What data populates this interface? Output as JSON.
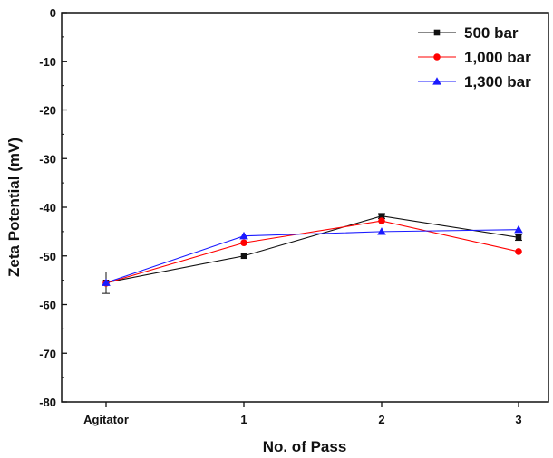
{
  "chart_data": {
    "type": "line",
    "title": "",
    "xlabel": "No. of Pass",
    "ylabel": "Zeta Potential (mV)",
    "categories": [
      "Agitator",
      "1",
      "2",
      "3"
    ],
    "ylim": [
      -80,
      0
    ],
    "yticks": [
      0,
      -10,
      -20,
      -30,
      -40,
      -50,
      -60,
      -70,
      -80
    ],
    "grid": false,
    "legend_position": "top-right",
    "series": [
      {
        "name": "500 bar",
        "color": "#111111",
        "marker": "square",
        "values": [
          -55.5,
          -50.0,
          -41.8,
          -46.2
        ],
        "errors": [
          2.2,
          0,
          0.5,
          0.6
        ]
      },
      {
        "name": "1,000 bar",
        "color": "#ff0000",
        "marker": "circle",
        "values": [
          -55.6,
          -47.3,
          -42.8,
          -49.1
        ],
        "errors": [
          0,
          0,
          0,
          0
        ]
      },
      {
        "name": "1,300 bar",
        "color": "#1a1aff",
        "marker": "triangle",
        "values": [
          -55.5,
          -45.9,
          -45.0,
          -44.6
        ],
        "errors": [
          0,
          0,
          0,
          0
        ]
      }
    ]
  }
}
